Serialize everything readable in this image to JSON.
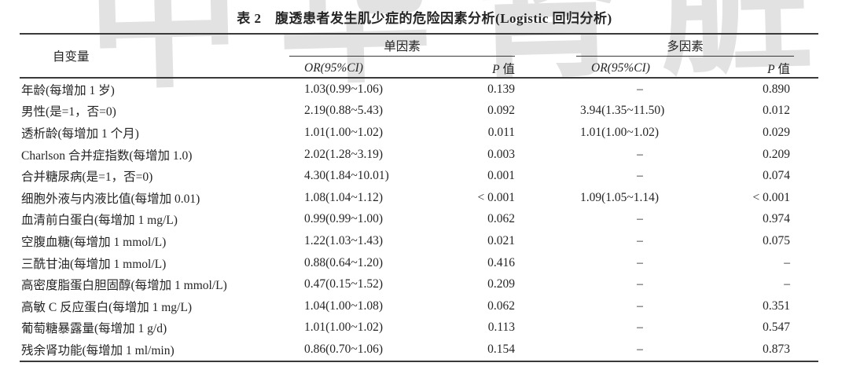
{
  "watermark": "中华肾脏病杂志",
  "title": "表 2　腹透患者发生肌少症的危险因素分析(Logistic 回归分析)",
  "table": {
    "col_variable": "自变量",
    "group_univariate": "单因素",
    "group_multivariate": "多因素",
    "or_header": "OR(95%CI)",
    "p_header": {
      "symbol": "P",
      "label": " 值"
    },
    "rows": [
      {
        "variable": "年龄(每增加 1 岁)",
        "uni_or": "1.03(0.99~1.06)",
        "uni_p": "0.139",
        "multi_or": "–",
        "multi_p": "0.890"
      },
      {
        "variable": "男性(是=1，否=0)",
        "uni_or": "2.19(0.88~5.43)",
        "uni_p": "0.092",
        "multi_or": "3.94(1.35~11.50)",
        "multi_p": "0.012"
      },
      {
        "variable": "透析龄(每增加 1 个月)",
        "uni_or": "1.01(1.00~1.02)",
        "uni_p": "0.011",
        "multi_or": "1.01(1.00~1.02)",
        "multi_p": "0.029"
      },
      {
        "variable": "Charlson 合并症指数(每增加 1.0)",
        "uni_or": "2.02(1.28~3.19)",
        "uni_p": "0.003",
        "multi_or": "–",
        "multi_p": "0.209"
      },
      {
        "variable": "合并糖尿病(是=1，否=0)",
        "uni_or": "4.30(1.84~10.01)",
        "uni_p": "0.001",
        "multi_or": "–",
        "multi_p": "0.074"
      },
      {
        "variable": "细胞外液与内液比值(每增加 0.01)",
        "uni_or": "1.08(1.04~1.12)",
        "uni_p": "< 0.001",
        "multi_or": "1.09(1.05~1.14)",
        "multi_p": "< 0.001"
      },
      {
        "variable": "血清前白蛋白(每增加 1 mg/L)",
        "uni_or": "0.99(0.99~1.00)",
        "uni_p": "0.062",
        "multi_or": "–",
        "multi_p": "0.974"
      },
      {
        "variable": "空腹血糖(每增加 1 mmol/L)",
        "uni_or": "1.22(1.03~1.43)",
        "uni_p": "0.021",
        "multi_or": "–",
        "multi_p": "0.075"
      },
      {
        "variable": "三酰甘油(每增加 1 mmol/L)",
        "uni_or": "0.88(0.64~1.20)",
        "uni_p": "0.416",
        "multi_or": "–",
        "multi_p": "–"
      },
      {
        "variable": "高密度脂蛋白胆固醇(每增加 1 mmol/L)",
        "uni_or": "0.47(0.15~1.52)",
        "uni_p": "0.209",
        "multi_or": "–",
        "multi_p": "–"
      },
      {
        "variable": "高敏 C 反应蛋白(每增加 1 mg/L)",
        "uni_or": "1.04(1.00~1.08)",
        "uni_p": "0.062",
        "multi_or": "–",
        "multi_p": "0.351"
      },
      {
        "variable": "葡萄糖暴露量(每增加 1 g/d)",
        "uni_or": "1.01(1.00~1.02)",
        "uni_p": "0.113",
        "multi_or": "–",
        "multi_p": "0.547"
      },
      {
        "variable": "残余肾功能(每增加 1 ml/min)",
        "uni_or": "0.86(0.70~1.06)",
        "uni_p": "0.154",
        "multi_or": "–",
        "multi_p": "0.873"
      }
    ]
  }
}
